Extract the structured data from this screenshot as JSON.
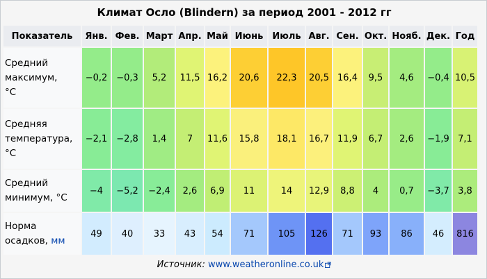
{
  "title": "Климат Осло (Blindern) за период 2001 - 2012 гг",
  "header": {
    "indicator": "Показатель",
    "months": [
      "Янв.",
      "Фев.",
      "Март",
      "Апр.",
      "Май",
      "Июнь",
      "Июль",
      "Авг.",
      "Сен.",
      "Окт.",
      "Нояб.",
      "Дек."
    ],
    "year": "Год"
  },
  "rows": [
    {
      "label_lines": [
        "Средний",
        "максимум,",
        "°C"
      ],
      "values": [
        "−0,2",
        "−0,3",
        "5,2",
        "11,5",
        "16,2",
        "20,6",
        "22,3",
        "20,5",
        "16,4",
        "9,5",
        "4,6",
        "−0,4"
      ],
      "year": "10,5",
      "colors": [
        "#94ec8a",
        "#94ec8a",
        "#b2ec7a",
        "#e0f474",
        "#fcf27c",
        "#fdcf34",
        "#fec628",
        "#fdcf34",
        "#fcf27c",
        "#c8ee74",
        "#a4ec80",
        "#94ec8a"
      ],
      "year_color": "#d8f274"
    },
    {
      "label_lines": [
        "Средняя",
        "температура,",
        "°C"
      ],
      "values": [
        "−2,1",
        "−2,8",
        "1,4",
        "7",
        "11,6",
        "15,8",
        "18,1",
        "16,7",
        "11,9",
        "6,7",
        "2,6",
        "−1,9"
      ],
      "year": "7,1",
      "colors": [
        "#88ec96",
        "#84eca0",
        "#a0ec84",
        "#c4ee74",
        "#e0f474",
        "#faf07c",
        "#fde866",
        "#fcf07c",
        "#e0f474",
        "#c4ee74",
        "#a4ec80",
        "#88ec96"
      ],
      "year_color": "#c4ee74"
    },
    {
      "label_lines": [
        "Средний",
        "минимум, °C"
      ],
      "values": [
        "−4",
        "−5,2",
        "−2,4",
        "2,6",
        "6,9",
        "11",
        "14",
        "12,9",
        "8,8",
        "4",
        "0,7",
        "−3,7"
      ],
      "year": "3,8",
      "colors": [
        "#80eaa8",
        "#7ce8b0",
        "#88ec98",
        "#a4ec80",
        "#c0ee74",
        "#dcf274",
        "#eef47a",
        "#e8f47a",
        "#ccf074",
        "#acec7c",
        "#98ec88",
        "#80eaa8"
      ],
      "year_color": "#acec7c"
    },
    {
      "label_lines": [
        "Норма",
        "осадков,"
      ],
      "unit": "мм",
      "values": [
        "49",
        "40",
        "33",
        "43",
        "54",
        "71",
        "105",
        "126",
        "71",
        "93",
        "86",
        "46"
      ],
      "year": "816",
      "colors": [
        "#d2ecfe",
        "#deeffe",
        "#e6f4fe",
        "#d8eefe",
        "#ccebfe",
        "#a4c8fc",
        "#6e94f6",
        "#5470f0",
        "#a4c8fc",
        "#7ea4fa",
        "#88b0fa",
        "#d4edfe"
      ],
      "year_color": "#8c86e0"
    }
  ],
  "source": {
    "prefix": "Источник:",
    "link": "www.weatheronline.co.uk"
  }
}
